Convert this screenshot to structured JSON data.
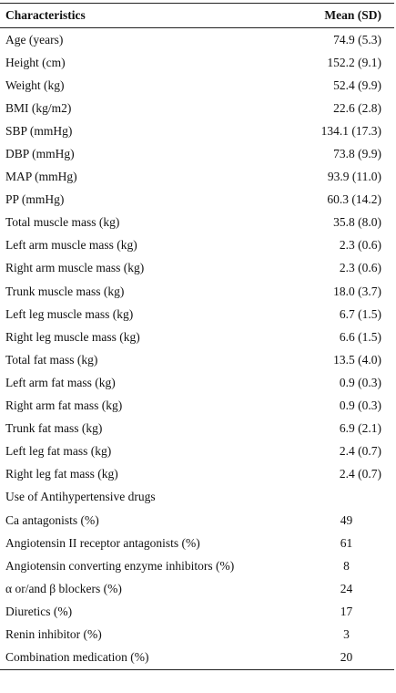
{
  "table": {
    "header": [
      "Characteristics",
      "Mean (SD)"
    ],
    "rows": [
      [
        "Age (years)",
        "74.9 (5.3)"
      ],
      [
        "Height (cm)",
        "152.2 (9.1)"
      ],
      [
        "Weight (kg)",
        "52.4 (9.9)"
      ],
      [
        "BMI (kg/m2)",
        "22.6 (2.8)"
      ],
      [
        "SBP (mmHg)",
        "134.1 (17.3)"
      ],
      [
        "DBP (mmHg)",
        "73.8 (9.9)"
      ],
      [
        "MAP (mmHg)",
        "93.9 (11.0)"
      ],
      [
        "PP (mmHg)",
        "60.3 (14.2)"
      ],
      [
        "Total muscle mass (kg)",
        "35.8 (8.0)"
      ],
      [
        "Left arm muscle mass (kg)",
        "2.3 (0.6)"
      ],
      [
        "Right arm muscle mass (kg)",
        "2.3 (0.6)"
      ],
      [
        "Trunk muscle mass (kg)",
        "18.0 (3.7)"
      ],
      [
        "Left leg muscle mass (kg)",
        "6.7 (1.5)"
      ],
      [
        "Right leg muscle mass (kg)",
        "6.6 (1.5)"
      ],
      [
        "Total fat mass (kg)",
        "13.5 (4.0)"
      ],
      [
        "Left arm fat mass (kg)",
        "0.9 (0.3)"
      ],
      [
        "Right arm fat mass (kg)",
        "0.9 (0.3)"
      ],
      [
        "Trunk fat mass (kg)",
        "6.9 (2.1)"
      ],
      [
        "Left leg fat mass (kg)",
        "2.4 (0.7)"
      ],
      [
        "Right leg fat mass (kg)",
        "2.4 (0.7)"
      ]
    ],
    "drug_section": {
      "title": "Use of Antihypertensive drugs",
      "rows": [
        [
          "Ca antagonists (%)",
          "49"
        ],
        [
          "Angiotensin II receptor antagonists (%)",
          "61"
        ],
        [
          "Angiotensin converting enzyme inhibitors (%)",
          "8"
        ],
        [
          "α or/and β blockers (%)",
          "24"
        ],
        [
          "Diuretics (%)",
          "17"
        ],
        [
          "Renin inhibitor (%)",
          "3"
        ],
        [
          "Combination medication (%)",
          "20"
        ]
      ]
    }
  }
}
